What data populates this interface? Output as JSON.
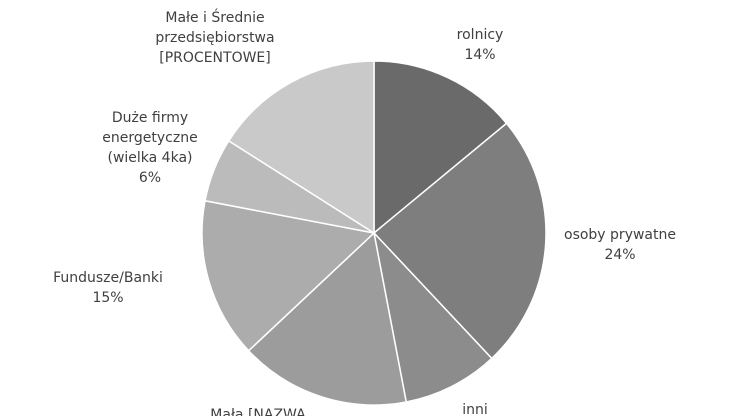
{
  "chart_data": {
    "type": "pie",
    "categories": [
      "rolnicy",
      "osoby prywatne",
      "inni",
      "Mała [NAZWA",
      "Fundusze/Banki",
      "Duże firmy energetyczne (wielka 4ka)",
      "Małe i Średnie przedsiębiorstwa [PROCENTOWE]"
    ],
    "values": [
      14,
      24,
      9,
      16,
      15,
      6,
      16
    ],
    "value_labels": [
      "14%",
      "24%",
      null,
      null,
      "15%",
      "6%",
      null
    ],
    "colors": [
      "#6a6a6a",
      "#7e7e7e",
      "#8c8c8c",
      "#9c9c9c",
      "#acacac",
      "#bbbbbb",
      "#c9c9c9"
    ]
  }
}
